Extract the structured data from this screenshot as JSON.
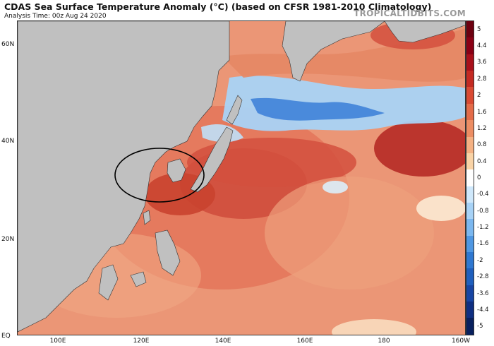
{
  "header": {
    "title": "CDAS Sea Surface Temperature Anomaly (°C) (based on CFSR 1981-2010 Climatology)",
    "subtitle": "Analysis Time: 00z Aug 24 2020",
    "brand": "TROPICALTIDBITS.COM"
  },
  "map": {
    "lat_labels": [
      "60N",
      "40N",
      "20N",
      "EQ"
    ],
    "lon_labels": [
      "100E",
      "120E",
      "140E",
      "160E",
      "180",
      "160W"
    ],
    "land_color": "#c0c0c0",
    "highlight": "ellipse around the Yellow Sea / East China Sea / Korea / southern Japan"
  },
  "colorbar": {
    "labels": [
      "5",
      "4.4",
      "3.6",
      "2.8",
      "2",
      "1.6",
      "1.2",
      "0.8",
      "0.4",
      "0",
      "-0.4",
      "-0.8",
      "-1.2",
      "-1.6",
      "-2",
      "-2.8",
      "-3.6",
      "-4.4",
      "-5"
    ],
    "colors": [
      "#6d0010",
      "#8a0015",
      "#a8101b",
      "#c42a22",
      "#d94a33",
      "#e36b49",
      "#ec8d63",
      "#f4b183",
      "#f9d3a6",
      "#ffffff",
      "#cfe8fb",
      "#a7d2f6",
      "#7bb7ef",
      "#4f97e2",
      "#2f78d1",
      "#1f5fbd",
      "#1745a3",
      "#0f2f82",
      "#08205e"
    ]
  }
}
